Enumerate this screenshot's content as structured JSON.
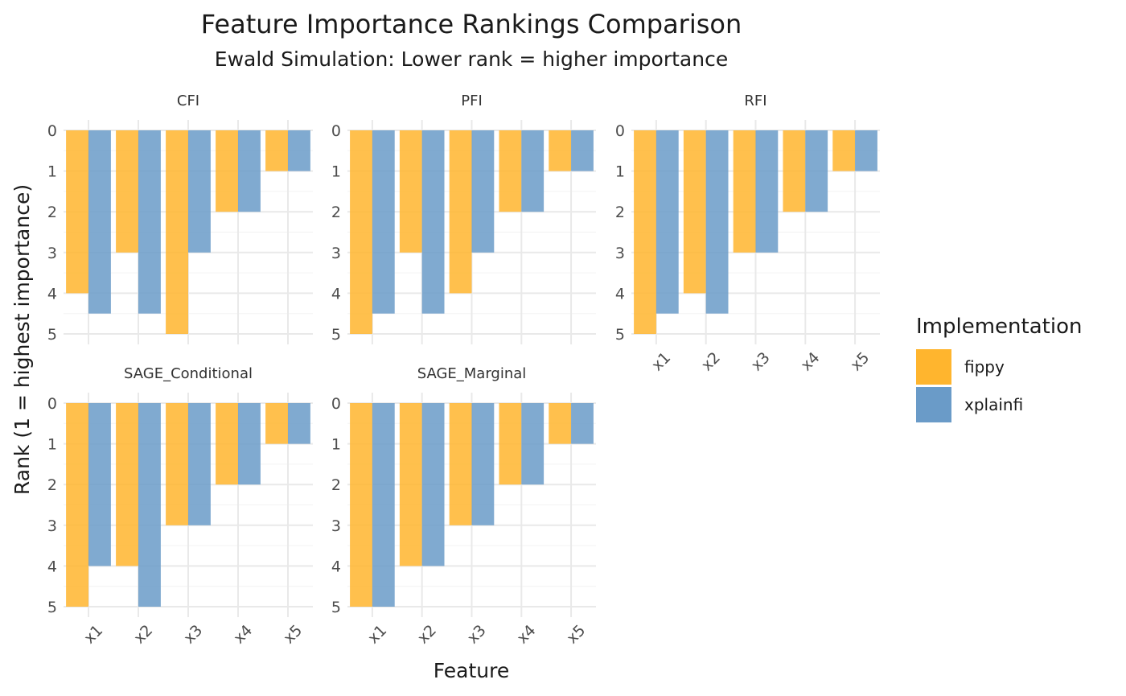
{
  "chart_data": {
    "type": "bar",
    "title": "Feature Importance Rankings Comparison",
    "subtitle": "Ewald Simulation: Lower rank = higher importance",
    "xlabel": "Feature",
    "ylabel": "Rank (1 = highest importance)",
    "ylim": [
      0,
      5
    ],
    "y_reversed": true,
    "yticks": [
      "0",
      "1",
      "2",
      "3",
      "4",
      "5"
    ],
    "grid": true,
    "categories": [
      "x1",
      "x2",
      "x3",
      "x4",
      "x5"
    ],
    "legend": {
      "title": "Implementation",
      "placement": "right",
      "entries": [
        {
          "name": "fippy",
          "color": "#FFB52E"
        },
        {
          "name": "xplainfi",
          "color": "#6A9BC8"
        }
      ]
    },
    "facets": [
      {
        "label": "CFI",
        "series": [
          {
            "name": "fippy",
            "values": [
              4,
              3,
              5,
              2,
              1
            ]
          },
          {
            "name": "xplainfi",
            "values": [
              4.5,
              4.5,
              3,
              2,
              1
            ]
          }
        ]
      },
      {
        "label": "PFI",
        "series": [
          {
            "name": "fippy",
            "values": [
              5,
              3,
              4,
              2,
              1
            ]
          },
          {
            "name": "xplainfi",
            "values": [
              4.5,
              4.5,
              3,
              2,
              1
            ]
          }
        ]
      },
      {
        "label": "RFI",
        "series": [
          {
            "name": "fippy",
            "values": [
              5,
              4,
              3,
              2,
              1
            ]
          },
          {
            "name": "xplainfi",
            "values": [
              4.5,
              4.5,
              3,
              2,
              1
            ]
          }
        ]
      },
      {
        "label": "SAGE_Conditional",
        "series": [
          {
            "name": "fippy",
            "values": [
              5,
              4,
              3,
              2,
              1
            ]
          },
          {
            "name": "xplainfi",
            "values": [
              4,
              5,
              3,
              2,
              1
            ]
          }
        ]
      },
      {
        "label": "SAGE_Marginal",
        "series": [
          {
            "name": "fippy",
            "values": [
              5,
              4,
              3,
              2,
              1
            ]
          },
          {
            "name": "xplainfi",
            "values": [
              5,
              4,
              3,
              2,
              1
            ]
          }
        ]
      }
    ]
  }
}
